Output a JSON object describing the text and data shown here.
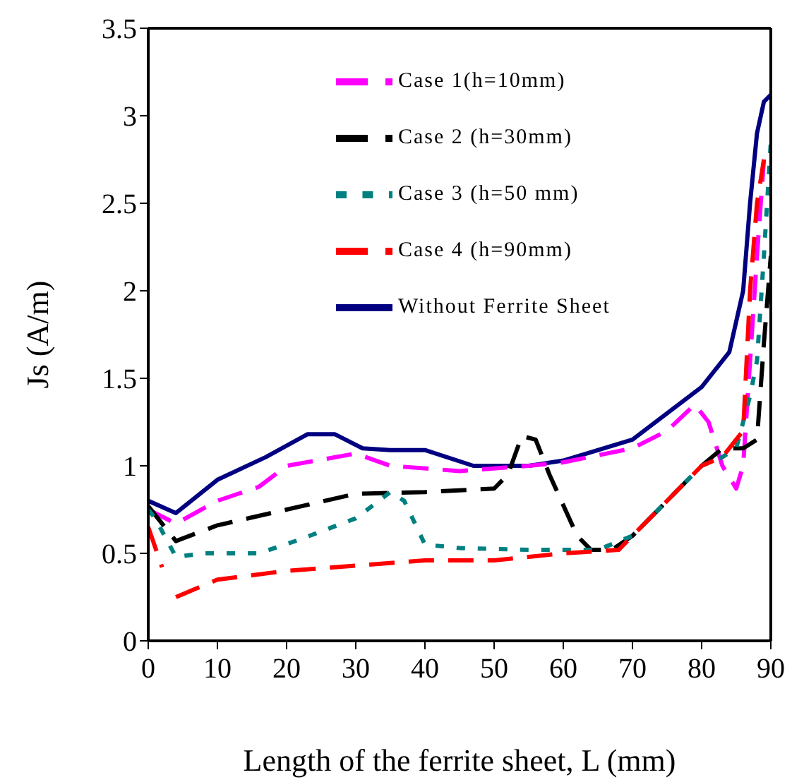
{
  "chart_data": {
    "type": "line",
    "xlabel": "Length of the ferrite sheet, L (mm)",
    "ylabel": "Js (A/m)",
    "xlim": [
      0,
      90
    ],
    "xticks": [
      0,
      10,
      20,
      30,
      40,
      50,
      60,
      70,
      80,
      90
    ],
    "ylim": [
      0,
      3.5
    ],
    "yticks": [
      0,
      0.5,
      1,
      1.5,
      2,
      2.5,
      3,
      3.5
    ],
    "grid": false,
    "legend": "top",
    "marker": "none",
    "series": [
      {
        "name": "Without Ferrite Sheet",
        "color": "#000080",
        "line_style": "solid",
        "x": [
          0,
          4,
          10,
          17,
          23,
          27,
          31,
          35,
          40,
          47,
          55,
          60,
          70,
          75,
          80,
          84,
          86,
          87,
          88,
          89,
          90
        ],
        "values": [
          0.8,
          0.73,
          0.92,
          1.05,
          1.18,
          1.18,
          1.1,
          1.09,
          1.09,
          1.0,
          1.0,
          1.03,
          1.15,
          1.3,
          1.45,
          1.65,
          2.0,
          2.5,
          2.9,
          3.08,
          3.12
        ]
      },
      {
        "name": "Case 1(h=10mm)",
        "color": "#ff00ff",
        "line_style": "dashed",
        "x": [
          0,
          4,
          10,
          16,
          20,
          30,
          35,
          45,
          55,
          60,
          70,
          75,
          79,
          81,
          83,
          85,
          86,
          87,
          88,
          89
        ],
        "values": [
          0.75,
          0.67,
          0.8,
          0.88,
          1.0,
          1.07,
          1.0,
          0.97,
          1.0,
          1.02,
          1.1,
          1.2,
          1.35,
          1.25,
          1.0,
          0.87,
          1.0,
          1.6,
          2.2,
          2.75
        ]
      },
      {
        "name": "Case 2 (h=30mm)",
        "color": "#000000",
        "line_style": "dashed",
        "x": [
          0,
          4,
          10,
          20,
          30,
          40,
          50,
          52,
          54,
          56,
          58,
          62,
          64,
          67,
          70,
          75,
          80,
          83,
          86,
          88,
          89,
          90
        ],
        "values": [
          0.77,
          0.57,
          0.66,
          0.75,
          0.84,
          0.85,
          0.87,
          0.95,
          1.17,
          1.15,
          0.95,
          0.6,
          0.52,
          0.52,
          0.6,
          0.8,
          1.0,
          1.1,
          1.1,
          1.15,
          1.7,
          2.2
        ]
      },
      {
        "name": "Case 3 (h=50 mm)",
        "color": "#008080",
        "line_style": "dotted",
        "x": [
          0,
          1,
          4,
          8,
          16,
          22,
          30,
          35,
          37,
          40,
          45,
          55,
          60,
          65,
          70,
          75,
          80,
          83,
          85,
          87,
          88,
          89,
          90
        ],
        "values": [
          0.75,
          0.7,
          0.48,
          0.5,
          0.5,
          0.58,
          0.7,
          0.85,
          0.8,
          0.55,
          0.53,
          0.52,
          0.52,
          0.52,
          0.6,
          0.8,
          1.0,
          1.05,
          1.1,
          1.4,
          1.6,
          2.2,
          2.85
        ]
      },
      {
        "name": "Case 4 (h=90mm)",
        "color": "#ff0000",
        "line_style": "dashed",
        "x": [
          0,
          2,
          3,
          4,
          10,
          20,
          30,
          40,
          50,
          55,
          60,
          68,
          70,
          75,
          80,
          83,
          86,
          87,
          88,
          89
        ],
        "values": [
          0.65,
          0.42,
          null,
          0.25,
          0.35,
          0.4,
          0.43,
          0.46,
          0.46,
          0.48,
          0.5,
          0.52,
          0.6,
          0.8,
          1.0,
          1.05,
          1.2,
          2.0,
          2.5,
          2.75
        ]
      }
    ]
  }
}
